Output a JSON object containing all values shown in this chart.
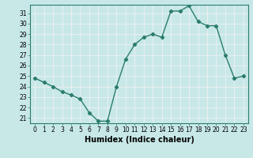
{
  "x": [
    0,
    1,
    2,
    3,
    4,
    5,
    6,
    7,
    8,
    9,
    10,
    11,
    12,
    13,
    14,
    15,
    16,
    17,
    18,
    19,
    20,
    21,
    22,
    23
  ],
  "y": [
    24.8,
    24.4,
    24.0,
    23.5,
    23.2,
    22.8,
    21.5,
    20.7,
    20.7,
    24.0,
    26.6,
    28.0,
    28.7,
    29.0,
    28.7,
    31.2,
    31.2,
    31.7,
    30.2,
    29.8,
    29.8,
    27.0,
    24.8,
    25.0
  ],
  "line_color": "#2a7d6b",
  "marker": "D",
  "marker_size": 2.2,
  "bg_color": "#c8e8e8",
  "grid_color": "#f0f0f0",
  "xlabel": "Humidex (Indice chaleur)",
  "xlim": [
    -0.5,
    23.5
  ],
  "ylim": [
    20.5,
    31.8
  ],
  "yticks": [
    21,
    22,
    23,
    24,
    25,
    26,
    27,
    28,
    29,
    30,
    31
  ],
  "xticks": [
    0,
    1,
    2,
    3,
    4,
    5,
    6,
    7,
    8,
    9,
    10,
    11,
    12,
    13,
    14,
    15,
    16,
    17,
    18,
    19,
    20,
    21,
    22,
    23
  ],
  "tick_label_color": "#000000",
  "font_size": 5.5,
  "xlabel_fontsize": 7.0,
  "line_width": 1.0
}
